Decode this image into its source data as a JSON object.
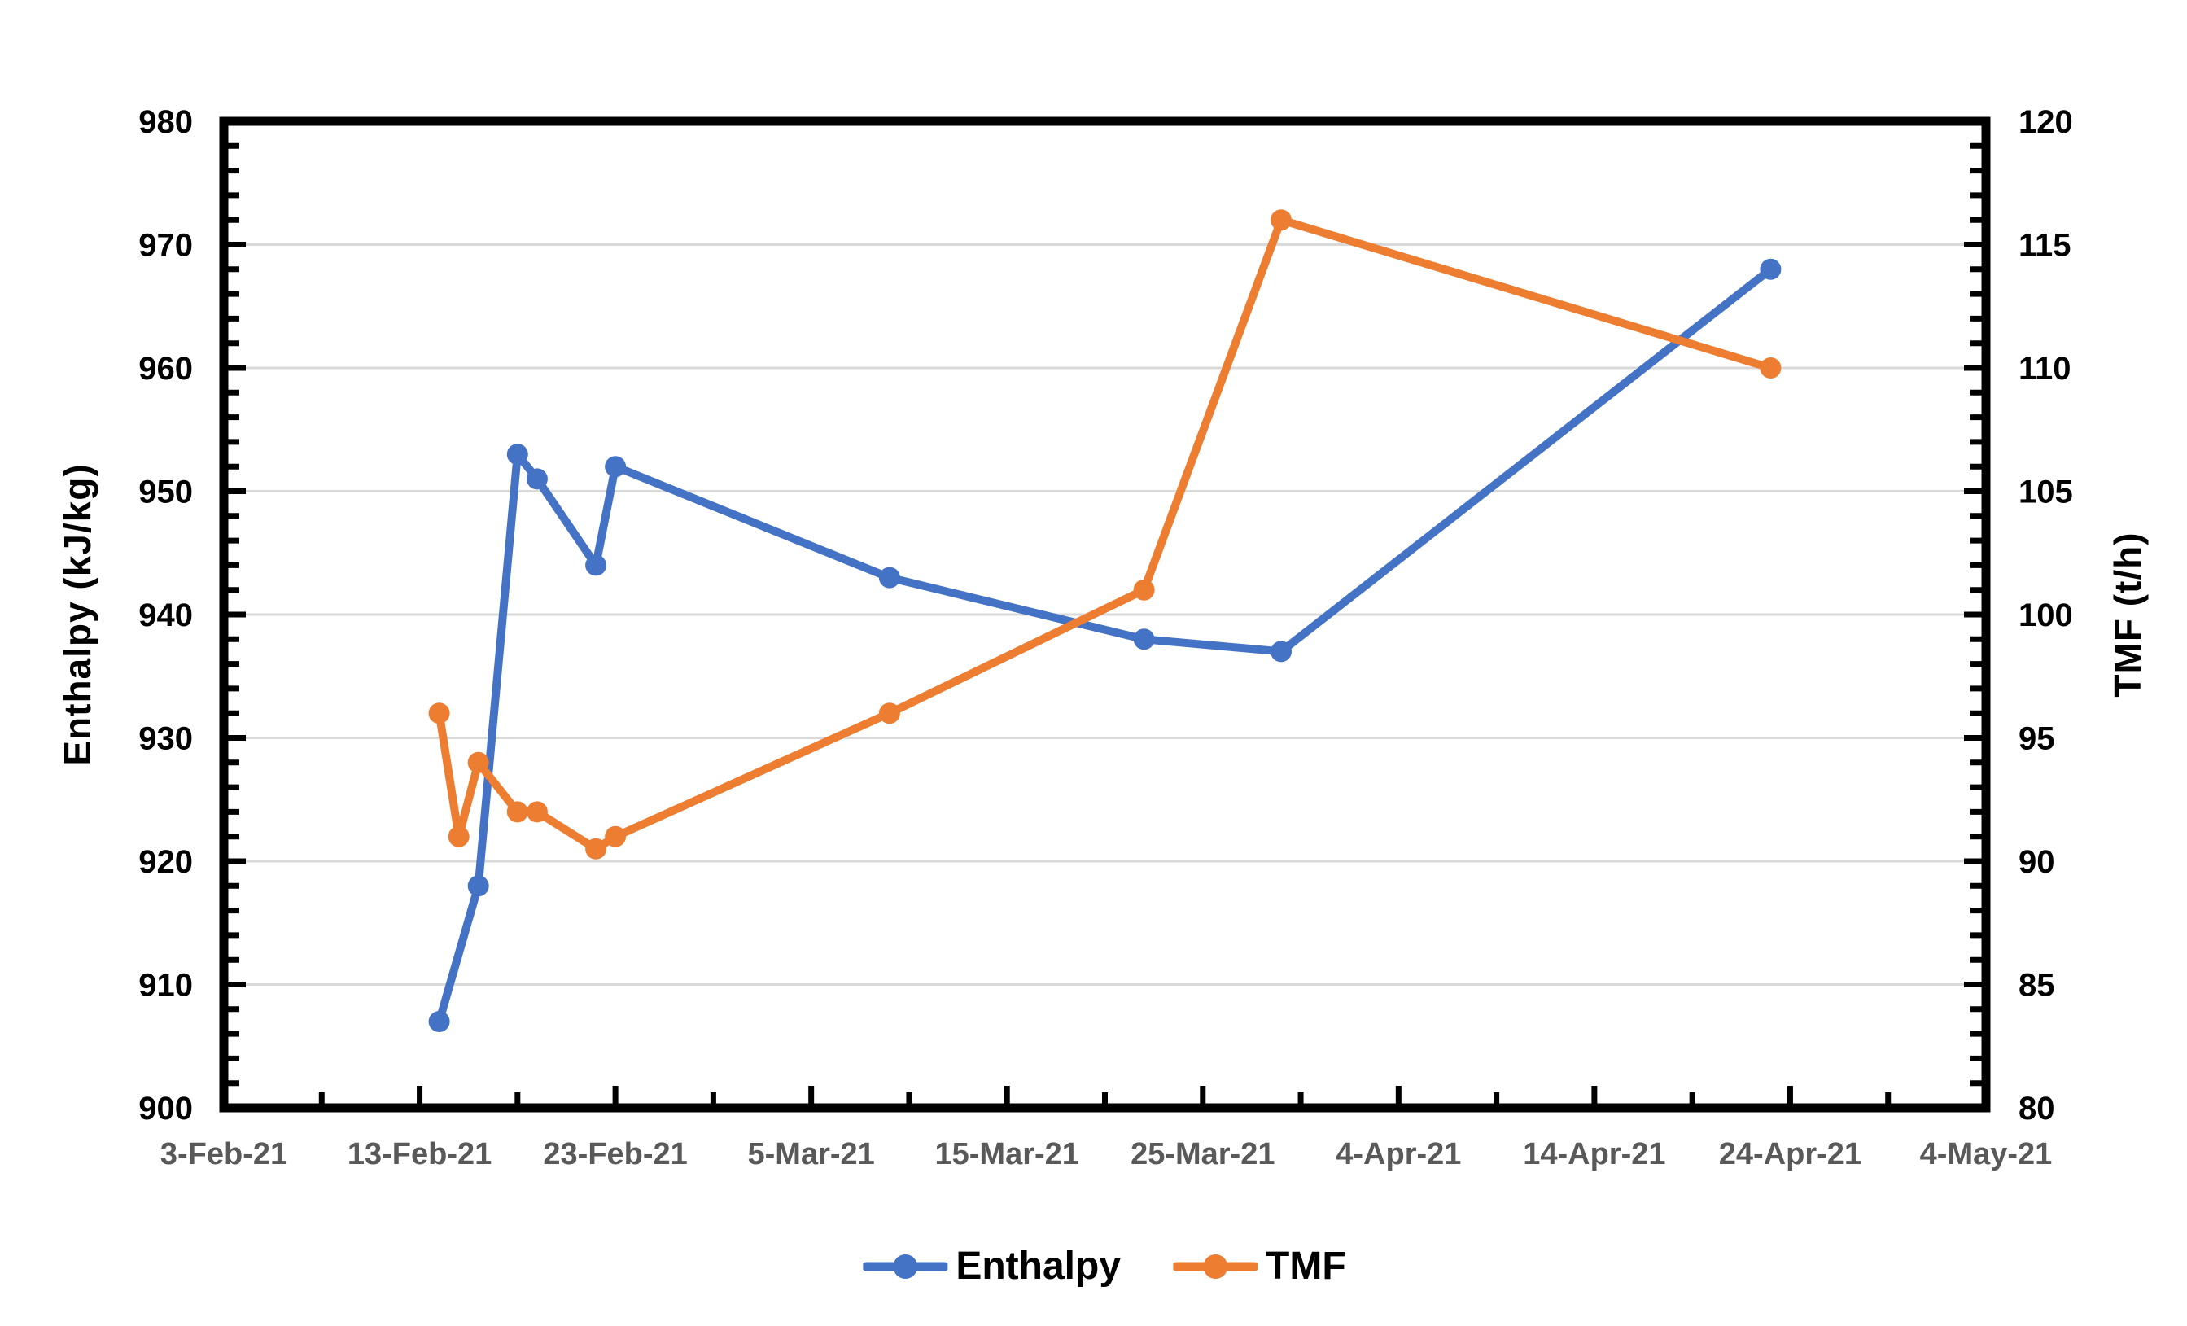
{
  "chart_data": {
    "type": "line",
    "title": "",
    "x_axis": {
      "tick_labels": [
        "3-Feb-21",
        "13-Feb-21",
        "23-Feb-21",
        "5-Mar-21",
        "15-Mar-21",
        "25-Mar-21",
        "4-Apr-21",
        "14-Apr-21",
        "24-Apr-21",
        "4-May-21"
      ],
      "major_tick_interval_days": 10,
      "minor_tick_interval_days": 5,
      "label_color": "#595959"
    },
    "y_axis_left": {
      "label": "Enthalpy (kJ/kg)",
      "min": 900,
      "max": 980,
      "major_step": 10,
      "minor_step": 2,
      "tick_labels": [
        "900",
        "910",
        "920",
        "930",
        "940",
        "950",
        "960",
        "970",
        "980"
      ]
    },
    "y_axis_right": {
      "label": "TMF (t/h)",
      "min": 80,
      "max": 120,
      "major_step": 5,
      "minor_step": 1,
      "tick_labels": [
        "80",
        "85",
        "90",
        "95",
        "100",
        "105",
        "110",
        "115",
        "120"
      ]
    },
    "grid": {
      "horizontal": true,
      "vertical": false,
      "color": "#D9D9D9"
    },
    "series": [
      {
        "name": "Enthalpy",
        "axis": "left",
        "color": "#4472C4",
        "points": [
          {
            "date": "14-Feb-21",
            "value": 907
          },
          {
            "date": "16-Feb-21",
            "value": 918
          },
          {
            "date": "18-Feb-21",
            "value": 953
          },
          {
            "date": "19-Feb-21",
            "value": 951
          },
          {
            "date": "22-Feb-21",
            "value": 944
          },
          {
            "date": "23-Feb-21",
            "value": 952
          },
          {
            "date": "9-Mar-21",
            "value": 943
          },
          {
            "date": "22-Mar-21",
            "value": 938
          },
          {
            "date": "29-Mar-21",
            "value": 937
          },
          {
            "date": "23-Apr-21",
            "value": 968
          }
        ]
      },
      {
        "name": "TMF",
        "axis": "right",
        "color": "#ED7D31",
        "points": [
          {
            "date": "14-Feb-21",
            "value": 96
          },
          {
            "date": "15-Feb-21",
            "value": 91
          },
          {
            "date": "16-Feb-21",
            "value": 94
          },
          {
            "date": "18-Feb-21",
            "value": 92
          },
          {
            "date": "19-Feb-21",
            "value": 92
          },
          {
            "date": "22-Feb-21",
            "value": 90.5
          },
          {
            "date": "23-Feb-21",
            "value": 91
          },
          {
            "date": "9-Mar-21",
            "value": 96
          },
          {
            "date": "22-Mar-21",
            "value": 101
          },
          {
            "date": "29-Mar-21",
            "value": 116
          },
          {
            "date": "23-Apr-21",
            "value": 110
          }
        ]
      }
    ],
    "legend": {
      "position": "bottom",
      "entries": [
        {
          "label": "Enthalpy",
          "color": "#4472C4"
        },
        {
          "label": "TMF",
          "color": "#ED7D31"
        }
      ]
    },
    "colors": {
      "plot_border": "#000000",
      "background": "#FFFFFF",
      "y_label_color": "#000000"
    }
  }
}
